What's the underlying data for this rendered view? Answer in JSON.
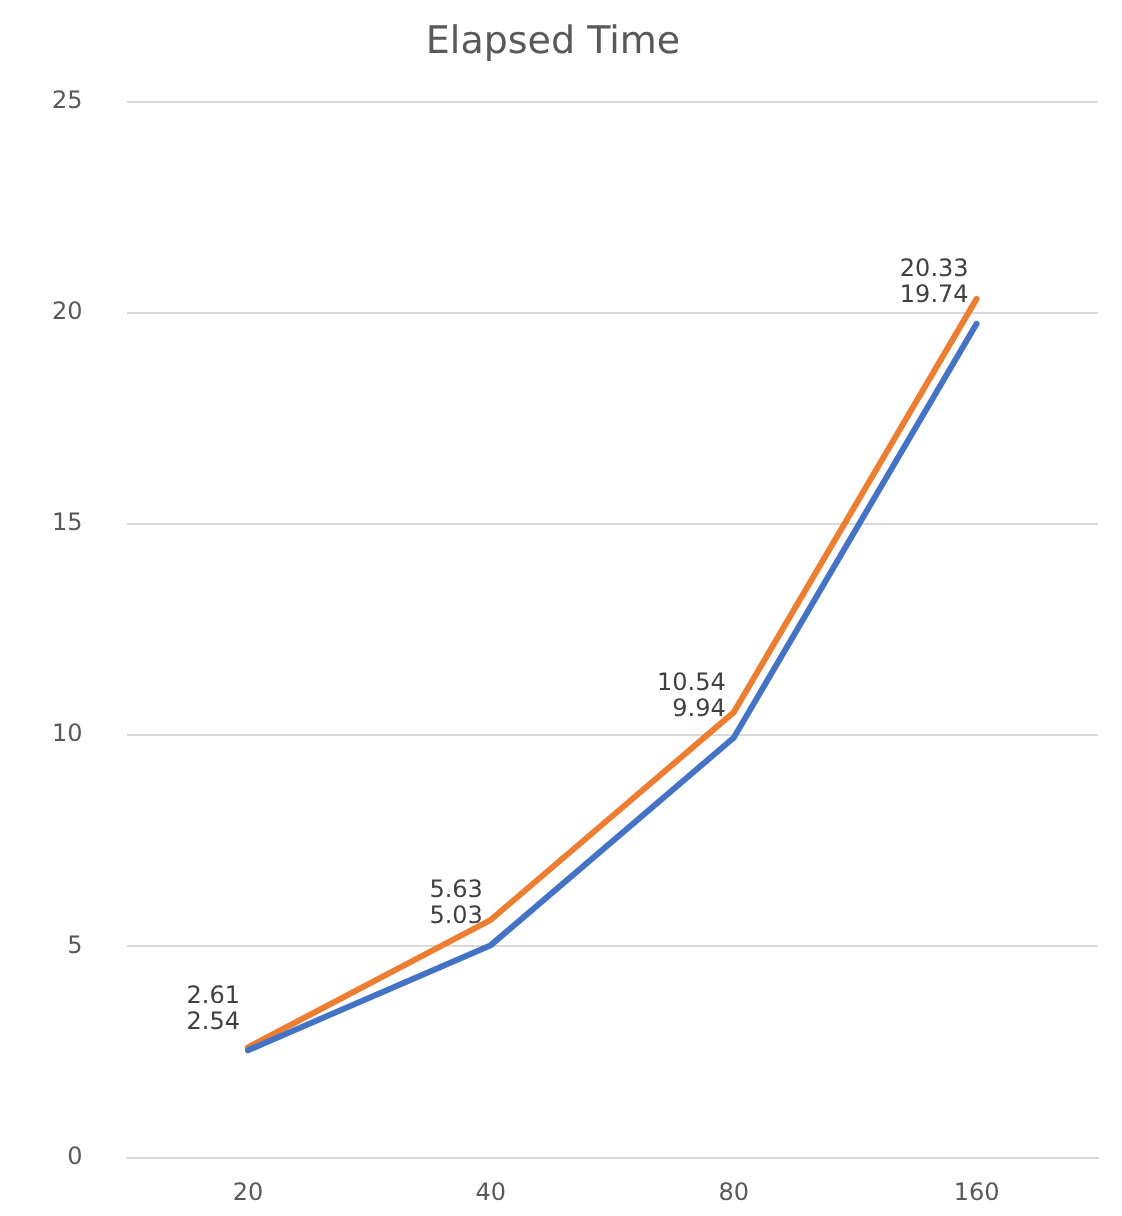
{
  "chart_data": {
    "type": "line",
    "title": "Elapsed Time",
    "categories": [
      "20",
      "40",
      "80",
      "160"
    ],
    "series": [
      {
        "color": "#4472c4",
        "values": [
          2.54,
          5.03,
          9.94,
          19.74
        ]
      },
      {
        "color": "#ed7d31",
        "values": [
          2.61,
          5.63,
          10.54,
          20.33
        ]
      }
    ],
    "ylim": [
      0,
      25
    ],
    "yticks": [
      0,
      5,
      10,
      15,
      20,
      25
    ],
    "grid": "y",
    "legend": false,
    "marker": "none",
    "line_style": "solid",
    "data_labels": true
  }
}
